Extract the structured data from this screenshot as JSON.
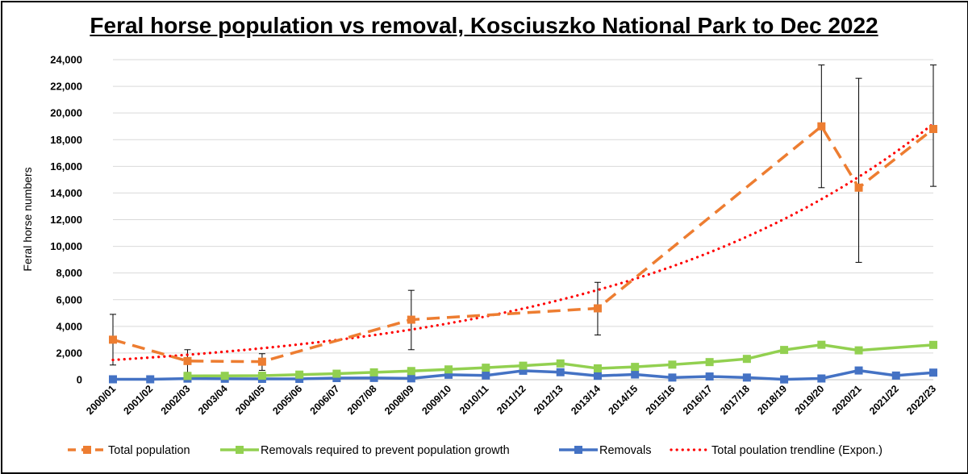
{
  "chart_data": {
    "type": "line",
    "title": "Feral horse population vs removal, Kosciuszko National Park to Dec 2022",
    "xlabel": "",
    "ylabel": "Feral horse numbers",
    "ylim": [
      0,
      24000
    ],
    "yticks": [
      0,
      2000,
      4000,
      6000,
      8000,
      10000,
      12000,
      14000,
      16000,
      18000,
      20000,
      22000,
      24000
    ],
    "ytick_labels": [
      "0",
      "2,000",
      "4,000",
      "6,000",
      "8,000",
      "10,000",
      "12,000",
      "14,000",
      "16,000",
      "18,000",
      "20,000",
      "22,000",
      "24,000"
    ],
    "grid": true,
    "legend_position": "bottom",
    "categories": [
      "2000/01",
      "2001/02",
      "2002/03",
      "2003/04",
      "2004/05",
      "2005/06",
      "2006/07",
      "2007/08",
      "2008/09",
      "2009/10",
      "2010/11",
      "2011/12",
      "2012/13",
      "2013/14",
      "2014/15",
      "2015/16",
      "2016/17",
      "2017/18",
      "2018/19",
      "2019/20",
      "2020/21",
      "2021/22",
      "2022/23"
    ],
    "series": [
      {
        "name": "Total population",
        "color": "#ED7D31",
        "style": "dashed-square",
        "points": [
          {
            "x": "2000/01",
            "y": 3000,
            "err_low": 1100,
            "err_high": 4900
          },
          {
            "x": "2002/03",
            "y": 1400,
            "err_low": 550,
            "err_high": 2250
          },
          {
            "x": "2004/05",
            "y": 1350,
            "err_low": 700,
            "err_high": 1950
          },
          {
            "x": "2008/09",
            "y": 4500,
            "err_low": 2250,
            "err_high": 6700
          },
          {
            "x": "2013/14",
            "y": 5350,
            "err_low": 3350,
            "err_high": 7300
          },
          {
            "x": "2019/20",
            "y": 19000,
            "err_low": 14400,
            "err_high": 23600
          },
          {
            "x": "2020/21",
            "y": 14400,
            "err_low": 8800,
            "err_high": 22600
          },
          {
            "x": "2022/23",
            "y": 18800,
            "err_low": 14500,
            "err_high": 23600
          }
        ]
      },
      {
        "name": "Removals required to prevent population growth",
        "color": "#92D050",
        "style": "solid-square",
        "points": [
          {
            "x": "2002/03",
            "y": 280
          },
          {
            "x": "2003/04",
            "y": 290
          },
          {
            "x": "2004/05",
            "y": 300
          },
          {
            "x": "2005/06",
            "y": 380
          },
          {
            "x": "2006/07",
            "y": 450
          },
          {
            "x": "2007/08",
            "y": 550
          },
          {
            "x": "2008/09",
            "y": 650
          },
          {
            "x": "2009/10",
            "y": 770
          },
          {
            "x": "2010/11",
            "y": 900
          },
          {
            "x": "2011/12",
            "y": 1050
          },
          {
            "x": "2012/13",
            "y": 1220
          },
          {
            "x": "2013/14",
            "y": 850
          },
          {
            "x": "2014/15",
            "y": 960
          },
          {
            "x": "2015/16",
            "y": 1130
          },
          {
            "x": "2016/17",
            "y": 1320
          },
          {
            "x": "2017/18",
            "y": 1560
          },
          {
            "x": "2018/19",
            "y": 2230
          },
          {
            "x": "2019/20",
            "y": 2620
          },
          {
            "x": "2020/21",
            "y": 2200
          },
          {
            "x": "2022/23",
            "y": 2610
          }
        ]
      },
      {
        "name": "Removals",
        "color": "#4472C4",
        "style": "solid-square",
        "points": [
          {
            "x": "2000/01",
            "y": 30
          },
          {
            "x": "2001/02",
            "y": 30
          },
          {
            "x": "2002/03",
            "y": 80
          },
          {
            "x": "2003/04",
            "y": 70
          },
          {
            "x": "2004/05",
            "y": 60
          },
          {
            "x": "2005/06",
            "y": 60
          },
          {
            "x": "2006/07",
            "y": 120
          },
          {
            "x": "2007/08",
            "y": 130
          },
          {
            "x": "2008/09",
            "y": 100
          },
          {
            "x": "2009/10",
            "y": 370
          },
          {
            "x": "2010/11",
            "y": 320
          },
          {
            "x": "2011/12",
            "y": 670
          },
          {
            "x": "2012/13",
            "y": 560
          },
          {
            "x": "2013/14",
            "y": 290
          },
          {
            "x": "2014/15",
            "y": 390
          },
          {
            "x": "2015/16",
            "y": 160
          },
          {
            "x": "2016/17",
            "y": 240
          },
          {
            "x": "2017/18",
            "y": 160
          },
          {
            "x": "2018/19",
            "y": 20
          },
          {
            "x": "2019/20",
            "y": 90
          },
          {
            "x": "2020/21",
            "y": 690
          },
          {
            "x": "2021/22",
            "y": 310
          },
          {
            "x": "2022/23",
            "y": 530
          }
        ]
      },
      {
        "name": "Total poulation trendline (Expon.)",
        "color": "#FF0000",
        "style": "dotted-trendline",
        "trend": {
          "start_x": "2000/01",
          "start_y": 1480,
          "end_x": "2022/23",
          "end_y": 19200
        }
      }
    ]
  }
}
